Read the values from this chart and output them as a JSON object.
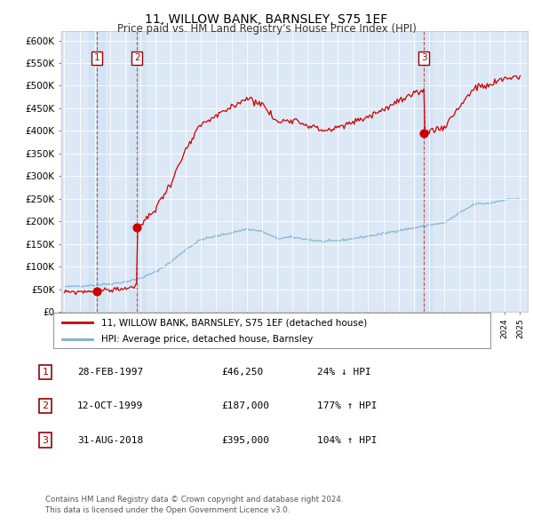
{
  "title": "11, WILLOW BANK, BARNSLEY, S75 1EF",
  "subtitle": "Price paid vs. HM Land Registry's House Price Index (HPI)",
  "sale_dates_t": [
    1997.122,
    1999.789,
    2018.667
  ],
  "sale_prices": [
    46250,
    187000,
    395000
  ],
  "sale_labels": [
    "1",
    "2",
    "3"
  ],
  "legend_property": "11, WILLOW BANK, BARNSLEY, S75 1EF (detached house)",
  "legend_hpi": "HPI: Average price, detached house, Barnsley",
  "table_rows": [
    [
      "1",
      "28-FEB-1997",
      "£46,250",
      "24% ↓ HPI"
    ],
    [
      "2",
      "12-OCT-1999",
      "£187,000",
      "177% ↑ HPI"
    ],
    [
      "3",
      "31-AUG-2018",
      "£395,000",
      "104% ↑ HPI"
    ]
  ],
  "footer": "Contains HM Land Registry data © Crown copyright and database right 2024.\nThis data is licensed under the Open Government Licence v3.0.",
  "property_color": "#cc0000",
  "hpi_color": "#7ab0d4",
  "vline_color": "#cc0000",
  "ylim": [
    0,
    620000
  ],
  "yticks": [
    0,
    50000,
    100000,
    150000,
    200000,
    250000,
    300000,
    350000,
    400000,
    450000,
    500000,
    550000,
    600000
  ],
  "background_color": "#ffffff",
  "plot_bg_color": "#dce8f5"
}
